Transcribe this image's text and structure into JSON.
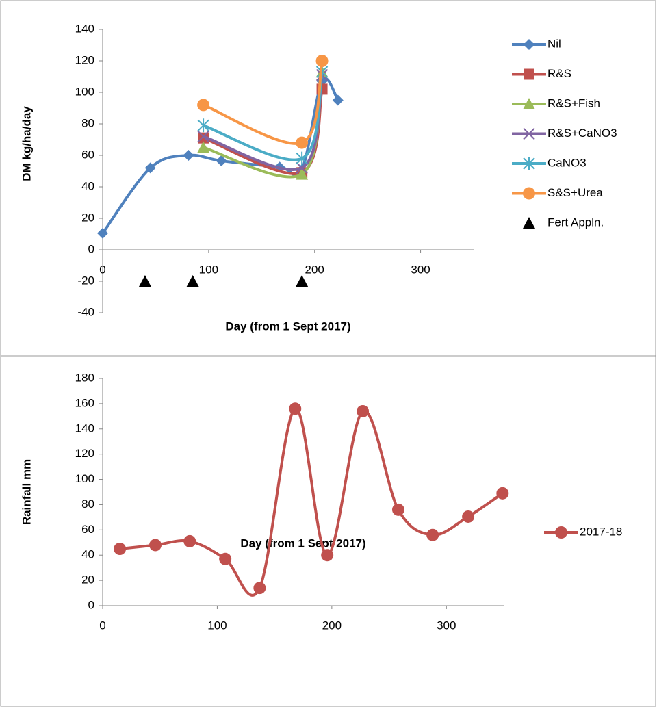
{
  "chart_data": [
    {
      "type": "line",
      "y_label": "DM kg/ha/day",
      "x_label": "Day (from 1 Sept 2017)",
      "xlim": [
        0,
        350
      ],
      "xticks": [
        0,
        100,
        200,
        300
      ],
      "ylim": [
        -40,
        140
      ],
      "yticks": [
        -40,
        -20,
        0,
        20,
        40,
        60,
        80,
        100,
        120,
        140
      ],
      "smooth": true,
      "grid": false,
      "legend": "right-top",
      "series": [
        {
          "name": "Nil",
          "color": "#4f81bd",
          "marker": "diamond",
          "line": true,
          "x": [
            0,
            45,
            81,
            112,
            167,
            188,
            207,
            222
          ],
          "values": [
            10.5,
            52,
            60,
            56.5,
            52.5,
            51,
            107,
            95
          ]
        },
        {
          "name": "R&S",
          "color": "#c0504d",
          "marker": "square",
          "line": true,
          "x": [
            95,
            188,
            207
          ],
          "values": [
            71,
            49,
            102
          ]
        },
        {
          "name": "R&S+Fish",
          "color": "#9bbb59",
          "marker": "triangle",
          "line": true,
          "x": [
            95,
            188,
            207
          ],
          "values": [
            65,
            48,
            113
          ]
        },
        {
          "name": "R&S+CaNO3",
          "color": "#8064a2",
          "marker": "x",
          "line": true,
          "x": [
            95,
            188,
            207
          ],
          "values": [
            72,
            52,
            111
          ]
        },
        {
          "name": "CaNO3",
          "color": "#4bacc6",
          "marker": "star",
          "line": true,
          "x": [
            95,
            188,
            207
          ],
          "values": [
            79,
            58,
            113
          ]
        },
        {
          "name": "S&S+Urea",
          "color": "#f79646",
          "marker": "circle",
          "line": true,
          "x": [
            95,
            188,
            207
          ],
          "values": [
            92,
            68,
            120
          ]
        },
        {
          "name": "Fert Appln.",
          "color": "#000000",
          "marker": "triangle",
          "line": false,
          "x": [
            40,
            85,
            188
          ],
          "values": [
            -20,
            -20,
            -20
          ]
        }
      ]
    },
    {
      "type": "line",
      "y_label": "Rainfall mm",
      "x_label": "Day (from 1 Sept 2017)",
      "xlim": [
        0,
        350
      ],
      "xticks": [
        0,
        100,
        200,
        300
      ],
      "ylim": [
        0,
        180
      ],
      "yticks": [
        0,
        20,
        40,
        60,
        80,
        100,
        120,
        140,
        160,
        180
      ],
      "smooth": true,
      "grid": false,
      "legend": "right",
      "series": [
        {
          "name": "2017-18",
          "color": "#c0504d",
          "marker": "circle",
          "line": true,
          "x": [
            15,
            46,
            76,
            107,
            137,
            168,
            196,
            227,
            258,
            288,
            319,
            349
          ],
          "values": [
            45,
            48,
            51,
            37,
            14,
            156,
            40,
            154,
            76,
            56,
            70.5,
            89
          ]
        }
      ]
    }
  ]
}
